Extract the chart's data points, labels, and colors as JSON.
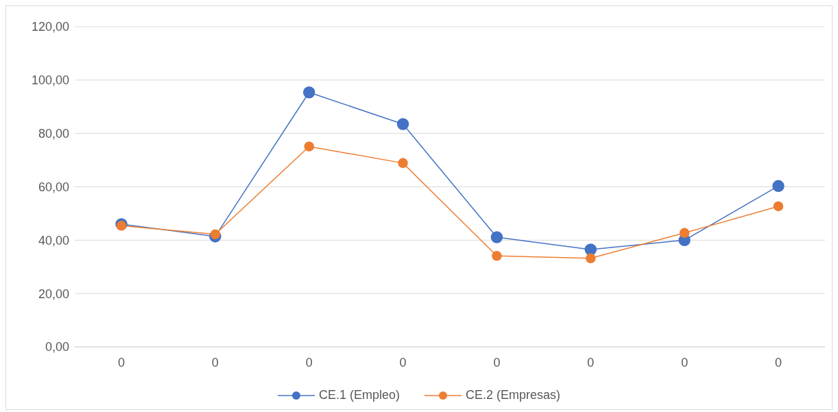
{
  "chart_data": {
    "type": "line",
    "categories": [
      "0",
      "0",
      "0",
      "0",
      "0",
      "0",
      "0",
      "0"
    ],
    "series": [
      {
        "name": "CE.1 (Empleo)",
        "color": "#4472c4",
        "values": [
          46,
          41.4,
          95.4,
          83.5,
          41.1,
          36.5,
          40,
          60.3
        ]
      },
      {
        "name": "CE.2 (Empresas)",
        "color": "#ed7d31",
        "values": [
          45.4,
          42.2,
          75.1,
          68.9,
          34.1,
          33.2,
          42.7,
          52.7
        ]
      }
    ],
    "ylim": [
      0,
      120
    ],
    "yticks": [
      {
        "value": 0,
        "label": "0,00"
      },
      {
        "value": 20,
        "label": "20,00"
      },
      {
        "value": 40,
        "label": "40,00"
      },
      {
        "value": 60,
        "label": "60,00"
      },
      {
        "value": 80,
        "label": "80,00"
      },
      {
        "value": 100,
        "label": "100,00"
      },
      {
        "value": 120,
        "label": "120,00"
      }
    ],
    "grid": "y",
    "legend": "bottom",
    "marker": "circle",
    "line_style": "solid"
  }
}
